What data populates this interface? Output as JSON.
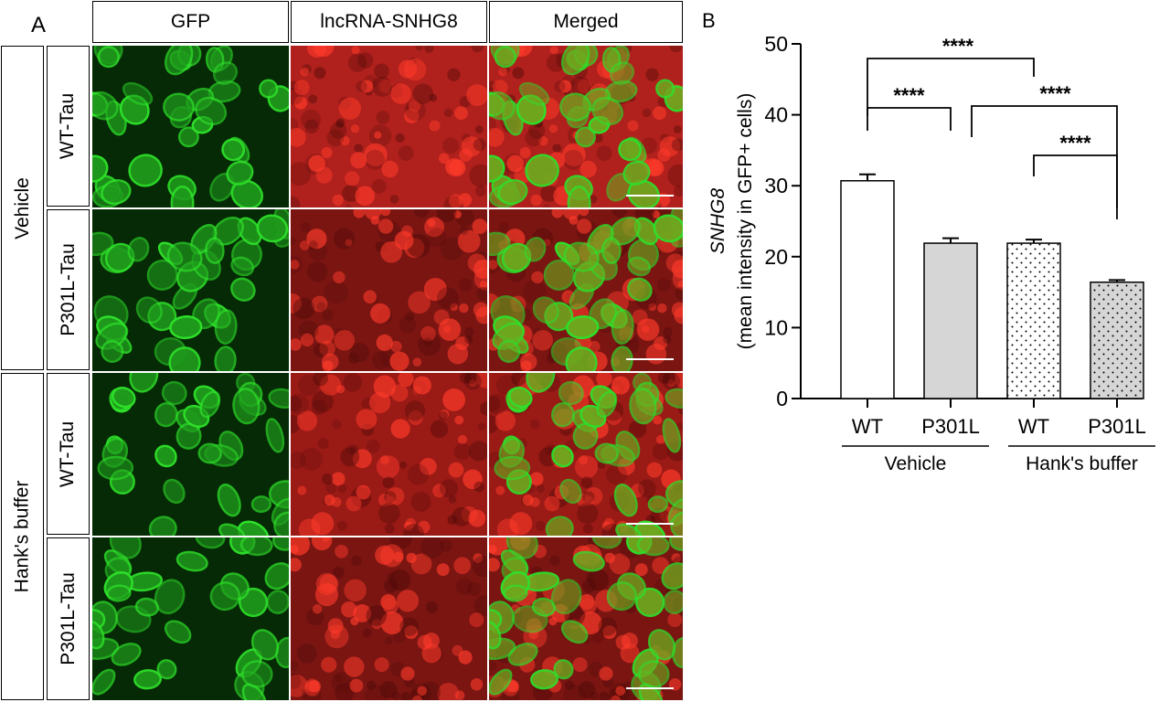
{
  "panel_a": {
    "letter": "A",
    "columns": [
      "GFP",
      "lncRNA-SNHG8",
      "Merged"
    ],
    "groups": [
      "Vehicle",
      "Hank's buffer"
    ],
    "rows": [
      "WT-Tau",
      "P301L-Tau",
      "WT-Tau",
      "P301L-Tau"
    ],
    "channel_colors": {
      "gfp": "#2ee02a",
      "lncrna": "#e02018"
    }
  },
  "panel_b": {
    "letter": "B"
  },
  "chart_data": {
    "type": "bar",
    "categories": [
      "WT",
      "P301L",
      "WT",
      "P301L"
    ],
    "values": [
      30.7,
      21.9,
      21.9,
      16.4
    ],
    "errors": [
      0.9,
      0.7,
      0.5,
      0.3
    ],
    "bar_fills": [
      "white",
      "lightgray",
      "white-dotted",
      "lightgray-dotted"
    ],
    "ylabel_italic": "SNHG8",
    "ylabel": "(mean intensity in GFP+ cells)",
    "ylim": [
      0,
      50
    ],
    "yticks": [
      0,
      10,
      20,
      30,
      40,
      50
    ],
    "groups": [
      {
        "label": "Vehicle",
        "categories": [
          0,
          1
        ]
      },
      {
        "label": "Hank's buffer",
        "categories": [
          2,
          3
        ]
      }
    ],
    "significance": [
      {
        "from": 0,
        "to": 2,
        "label": "****"
      },
      {
        "from": 0,
        "to": 1,
        "label": "****"
      },
      {
        "from": 1,
        "to": 3,
        "label": "****"
      },
      {
        "from": 2,
        "to": 3,
        "label": "****"
      }
    ],
    "grid": false
  }
}
